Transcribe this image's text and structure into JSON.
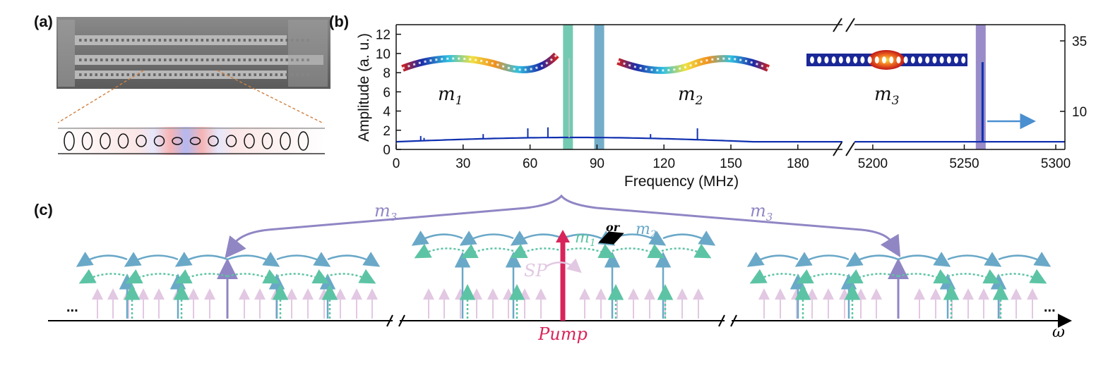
{
  "panels": {
    "a": "(a)",
    "b": "(b)",
    "c": "(c)"
  },
  "plot_b": {
    "y_label": "Amplitude (a. u.)",
    "x_label": "Frequency (MHz)",
    "left_ticks": [
      "0",
      "2",
      "4",
      "6",
      "8",
      "10",
      "12"
    ],
    "right_ticks": [
      "10",
      "35"
    ],
    "x_ticks_left": [
      "0",
      "30",
      "60",
      "90",
      "120",
      "150",
      "180"
    ],
    "x_ticks_right": [
      "5200",
      "5250",
      "5300"
    ],
    "modes": [
      {
        "name": "m",
        "sub": "1"
      },
      {
        "name": "m",
        "sub": "2"
      },
      {
        "name": "m",
        "sub": "3"
      }
    ]
  },
  "chart_data": {
    "type": "line",
    "xlabel": "Frequency (MHz)",
    "ylabel": "Amplitude (a. u.)",
    "xlim_segments": [
      [
        0,
        200
      ],
      [
        5190,
        5305
      ]
    ],
    "ylim": [
      0,
      13
    ],
    "y2_ticks": [
      10,
      35
    ],
    "peaks_mhz": [
      {
        "x": 11,
        "y": 1.4
      },
      {
        "x": 12.5,
        "y": 1.2
      },
      {
        "x": 39,
        "y": 1.6
      },
      {
        "x": 59,
        "y": 2.2
      },
      {
        "x": 68,
        "y": 2.3
      },
      {
        "x": 77.5,
        "y": 9.5
      },
      {
        "x": 114,
        "y": 1.6
      },
      {
        "x": 135,
        "y": 2.2
      },
      {
        "x": 5260,
        "y": 9.1
      }
    ],
    "bands_mhz": [
      {
        "x": 77,
        "color": "#5cc0a4"
      },
      {
        "x": 91,
        "color": "#5b9fbf"
      },
      {
        "x": 5259,
        "color": "#8878c0"
      }
    ]
  },
  "diagram_c": {
    "pump_label": "Pump",
    "sp_label": "SP",
    "or_label": "or",
    "omega_label": "ω",
    "ellipsis": "...",
    "m1": {
      "name": "m",
      "sub": "1"
    },
    "m2": {
      "name": "m",
      "sub": "2"
    },
    "m3": {
      "name": "m",
      "sub": "3"
    }
  },
  "colors": {
    "m1": "#5cc4a4",
    "m2": "#6aa8c8",
    "m3": "#9086c4",
    "pump": "#d8245a",
    "sp": "#e2c8e2",
    "spectrum": "#1030b0"
  }
}
